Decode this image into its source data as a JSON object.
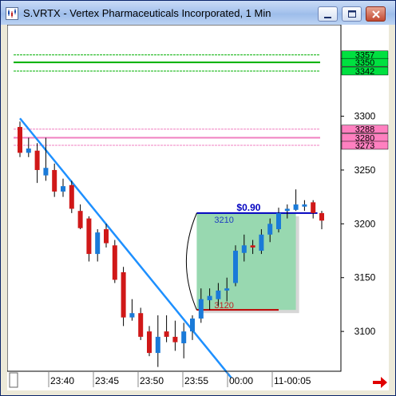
{
  "window": {
    "title": "S.VRTX - Vertex Pharmaceuticals Incorporated, 1 Min",
    "controls": [
      "minimize",
      "maximize",
      "close"
    ]
  },
  "chart_data": {
    "type": "candlestick",
    "timeframe": "1 Min",
    "y_ticks": [
      "3300",
      "3250",
      "3200",
      "3150",
      "3100"
    ],
    "x_ticks": [
      "23:40",
      "23:45",
      "23:50",
      "23:55",
      "00:00",
      "11-00:05"
    ],
    "ylim": [
      3063,
      3385
    ],
    "horizontal_levels": [
      {
        "label": "3357",
        "value": 3357,
        "color": "#00b000",
        "box": "#00e040"
      },
      {
        "label": "3350",
        "value": 3350,
        "color": "#00b000",
        "box": "#00e040"
      },
      {
        "label": "3342",
        "value": 3342,
        "color": "#00b000",
        "box": "#00e040"
      },
      {
        "label": "3288",
        "value": 3288,
        "color": "#f080c0",
        "box": "#ff80c0"
      },
      {
        "label": "3280",
        "value": 3280,
        "color": "#f080c0",
        "box": "#ff80c0"
      },
      {
        "label": "3273",
        "value": 3273,
        "color": "#f080c0",
        "box": "#ff80c0"
      }
    ],
    "trendline": {
      "start": {
        "bar": 0,
        "price": 3298
      },
      "end": {
        "bar": 24.5,
        "price": 3057
      },
      "color": "#1e90ff"
    },
    "measure_box": {
      "top_price": 3210,
      "bottom_price": 3120,
      "top_label": "3210",
      "bottom_label": "3120",
      "delta_label": "$0.90",
      "bar_start": 20.5,
      "bar_end": 32
    },
    "candles": [
      {
        "o": 3290,
        "h": 3295,
        "l": 3262,
        "c": 3266
      },
      {
        "o": 3266,
        "h": 3280,
        "l": 3262,
        "c": 3270
      },
      {
        "o": 3268,
        "h": 3275,
        "l": 3238,
        "c": 3250
      },
      {
        "o": 3245,
        "h": 3280,
        "l": 3240,
        "c": 3252
      },
      {
        "o": 3250,
        "h": 3256,
        "l": 3225,
        "c": 3230
      },
      {
        "o": 3230,
        "h": 3242,
        "l": 3225,
        "c": 3235
      },
      {
        "o": 3236,
        "h": 3240,
        "l": 3210,
        "c": 3214
      },
      {
        "o": 3212,
        "h": 3218,
        "l": 3195,
        "c": 3196
      },
      {
        "o": 3205,
        "h": 3207,
        "l": 3165,
        "c": 3172
      },
      {
        "o": 3172,
        "h": 3195,
        "l": 3165,
        "c": 3192
      },
      {
        "o": 3195,
        "h": 3200,
        "l": 3178,
        "c": 3182
      },
      {
        "o": 3180,
        "h": 3185,
        "l": 3145,
        "c": 3148
      },
      {
        "o": 3155,
        "h": 3160,
        "l": 3105,
        "c": 3113
      },
      {
        "o": 3113,
        "h": 3130,
        "l": 3110,
        "c": 3117
      },
      {
        "o": 3117,
        "h": 3122,
        "l": 3092,
        "c": 3095
      },
      {
        "o": 3100,
        "h": 3105,
        "l": 3077,
        "c": 3080
      },
      {
        "o": 3080,
        "h": 3115,
        "l": 3067,
        "c": 3095
      },
      {
        "o": 3100,
        "h": 3115,
        "l": 3090,
        "c": 3095
      },
      {
        "o": 3095,
        "h": 3110,
        "l": 3082,
        "c": 3090
      },
      {
        "o": 3089,
        "h": 3108,
        "l": 3075,
        "c": 3100
      },
      {
        "o": 3100,
        "h": 3115,
        "l": 3092,
        "c": 3112
      },
      {
        "o": 3112,
        "h": 3140,
        "l": 3108,
        "c": 3130
      },
      {
        "o": 3129,
        "h": 3140,
        "l": 3120,
        "c": 3133
      },
      {
        "o": 3130,
        "h": 3145,
        "l": 3124,
        "c": 3138
      },
      {
        "o": 3138,
        "h": 3150,
        "l": 3128,
        "c": 3140
      },
      {
        "o": 3145,
        "h": 3180,
        "l": 3142,
        "c": 3175
      },
      {
        "o": 3173,
        "h": 3190,
        "l": 3165,
        "c": 3180
      },
      {
        "o": 3180,
        "h": 3185,
        "l": 3172,
        "c": 3178
      },
      {
        "o": 3175,
        "h": 3195,
        "l": 3172,
        "c": 3190
      },
      {
        "o": 3190,
        "h": 3205,
        "l": 3183,
        "c": 3200
      },
      {
        "o": 3195,
        "h": 3215,
        "l": 3192,
        "c": 3210
      },
      {
        "o": 3212,
        "h": 3218,
        "l": 3205,
        "c": 3214
      },
      {
        "o": 3213,
        "h": 3232,
        "l": 3212,
        "c": 3218
      },
      {
        "o": 3216,
        "h": 3222,
        "l": 3212,
        "c": 3218
      },
      {
        "o": 3220,
        "h": 3222,
        "l": 3205,
        "c": 3210
      },
      {
        "o": 3210,
        "h": 3212,
        "l": 3195,
        "c": 3203
      }
    ]
  }
}
